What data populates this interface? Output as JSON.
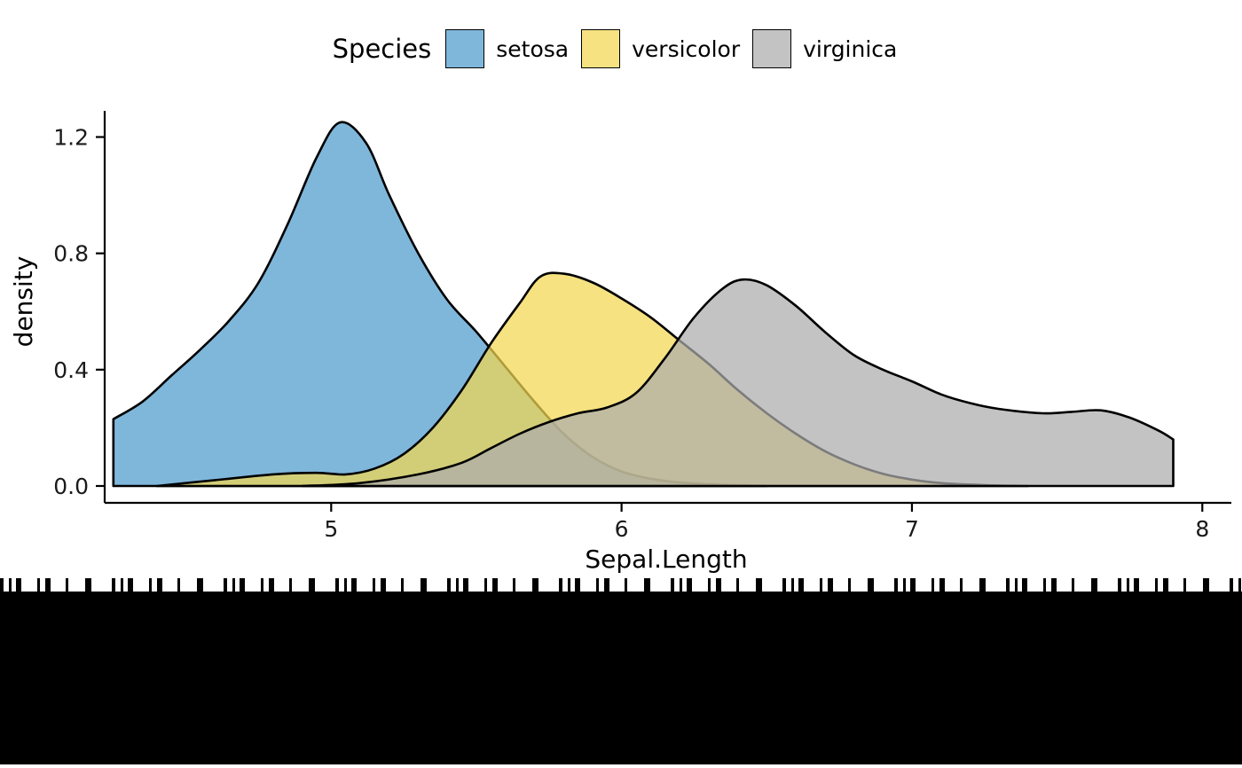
{
  "legend": {
    "title": "Species",
    "entries": [
      {
        "label": "setosa",
        "color": "#4E9BCD"
      },
      {
        "label": "versicolor",
        "color": "#F2D750"
      },
      {
        "label": "virginica",
        "color": "#ACACAC"
      }
    ]
  },
  "chart_data": {
    "type": "area",
    "subtype": "kernel-density",
    "title": "",
    "xlabel": "Sepal.Length",
    "ylabel": "density",
    "xlim": [
      4.22,
      8.1
    ],
    "ylim": [
      0,
      1.29
    ],
    "xticks": [
      {
        "value": 5,
        "label": "5"
      },
      {
        "value": 6,
        "label": "6"
      },
      {
        "value": 7,
        "label": "7"
      },
      {
        "value": 8,
        "label": "8"
      }
    ],
    "yticks": [
      {
        "value": 0.0,
        "label": "0.0"
      },
      {
        "value": 0.4,
        "label": "0.4"
      },
      {
        "value": 0.8,
        "label": "0.8"
      },
      {
        "value": 1.2,
        "label": "1.2"
      }
    ],
    "grid": false,
    "legend_position": "top",
    "fill_opacity": 0.72,
    "stroke_color": "#000000",
    "series": [
      {
        "name": "setosa",
        "color": "#4E9BCD",
        "points": [
          [
            4.25,
            0.23
          ],
          [
            4.35,
            0.29
          ],
          [
            4.45,
            0.38
          ],
          [
            4.55,
            0.47
          ],
          [
            4.65,
            0.57
          ],
          [
            4.75,
            0.7
          ],
          [
            4.85,
            0.9
          ],
          [
            4.95,
            1.13
          ],
          [
            5.03,
            1.25
          ],
          [
            5.12,
            1.18
          ],
          [
            5.2,
            1.0
          ],
          [
            5.3,
            0.8
          ],
          [
            5.4,
            0.64
          ],
          [
            5.5,
            0.53
          ],
          [
            5.6,
            0.41
          ],
          [
            5.7,
            0.29
          ],
          [
            5.8,
            0.18
          ],
          [
            5.9,
            0.1
          ],
          [
            6.0,
            0.05
          ],
          [
            6.1,
            0.025
          ],
          [
            6.2,
            0.012
          ],
          [
            6.35,
            0.004
          ],
          [
            6.5,
            0.0
          ]
        ]
      },
      {
        "name": "versicolor",
        "color": "#F2D750",
        "points": [
          [
            4.4,
            0.0
          ],
          [
            4.6,
            0.02
          ],
          [
            4.8,
            0.04
          ],
          [
            4.95,
            0.045
          ],
          [
            5.05,
            0.04
          ],
          [
            5.15,
            0.06
          ],
          [
            5.25,
            0.11
          ],
          [
            5.35,
            0.2
          ],
          [
            5.45,
            0.33
          ],
          [
            5.55,
            0.49
          ],
          [
            5.65,
            0.63
          ],
          [
            5.72,
            0.72
          ],
          [
            5.8,
            0.73
          ],
          [
            5.9,
            0.7
          ],
          [
            6.0,
            0.645
          ],
          [
            6.1,
            0.58
          ],
          [
            6.2,
            0.5
          ],
          [
            6.3,
            0.42
          ],
          [
            6.4,
            0.33
          ],
          [
            6.5,
            0.25
          ],
          [
            6.6,
            0.18
          ],
          [
            6.7,
            0.12
          ],
          [
            6.8,
            0.075
          ],
          [
            6.9,
            0.042
          ],
          [
            7.0,
            0.022
          ],
          [
            7.1,
            0.01
          ],
          [
            7.25,
            0.003
          ],
          [
            7.4,
            0.0
          ]
        ]
      },
      {
        "name": "virginica",
        "color": "#ACACAC",
        "points": [
          [
            4.9,
            0.0
          ],
          [
            5.1,
            0.01
          ],
          [
            5.3,
            0.04
          ],
          [
            5.45,
            0.08
          ],
          [
            5.55,
            0.13
          ],
          [
            5.65,
            0.18
          ],
          [
            5.75,
            0.22
          ],
          [
            5.85,
            0.25
          ],
          [
            5.95,
            0.27
          ],
          [
            6.05,
            0.32
          ],
          [
            6.15,
            0.44
          ],
          [
            6.25,
            0.58
          ],
          [
            6.35,
            0.68
          ],
          [
            6.42,
            0.71
          ],
          [
            6.5,
            0.69
          ],
          [
            6.6,
            0.62
          ],
          [
            6.7,
            0.53
          ],
          [
            6.8,
            0.45
          ],
          [
            6.9,
            0.4
          ],
          [
            7.0,
            0.36
          ],
          [
            7.1,
            0.315
          ],
          [
            7.2,
            0.285
          ],
          [
            7.3,
            0.265
          ],
          [
            7.45,
            0.25
          ],
          [
            7.55,
            0.255
          ],
          [
            7.65,
            0.26
          ],
          [
            7.75,
            0.235
          ],
          [
            7.85,
            0.19
          ],
          [
            7.9,
            0.16
          ]
        ]
      }
    ]
  }
}
